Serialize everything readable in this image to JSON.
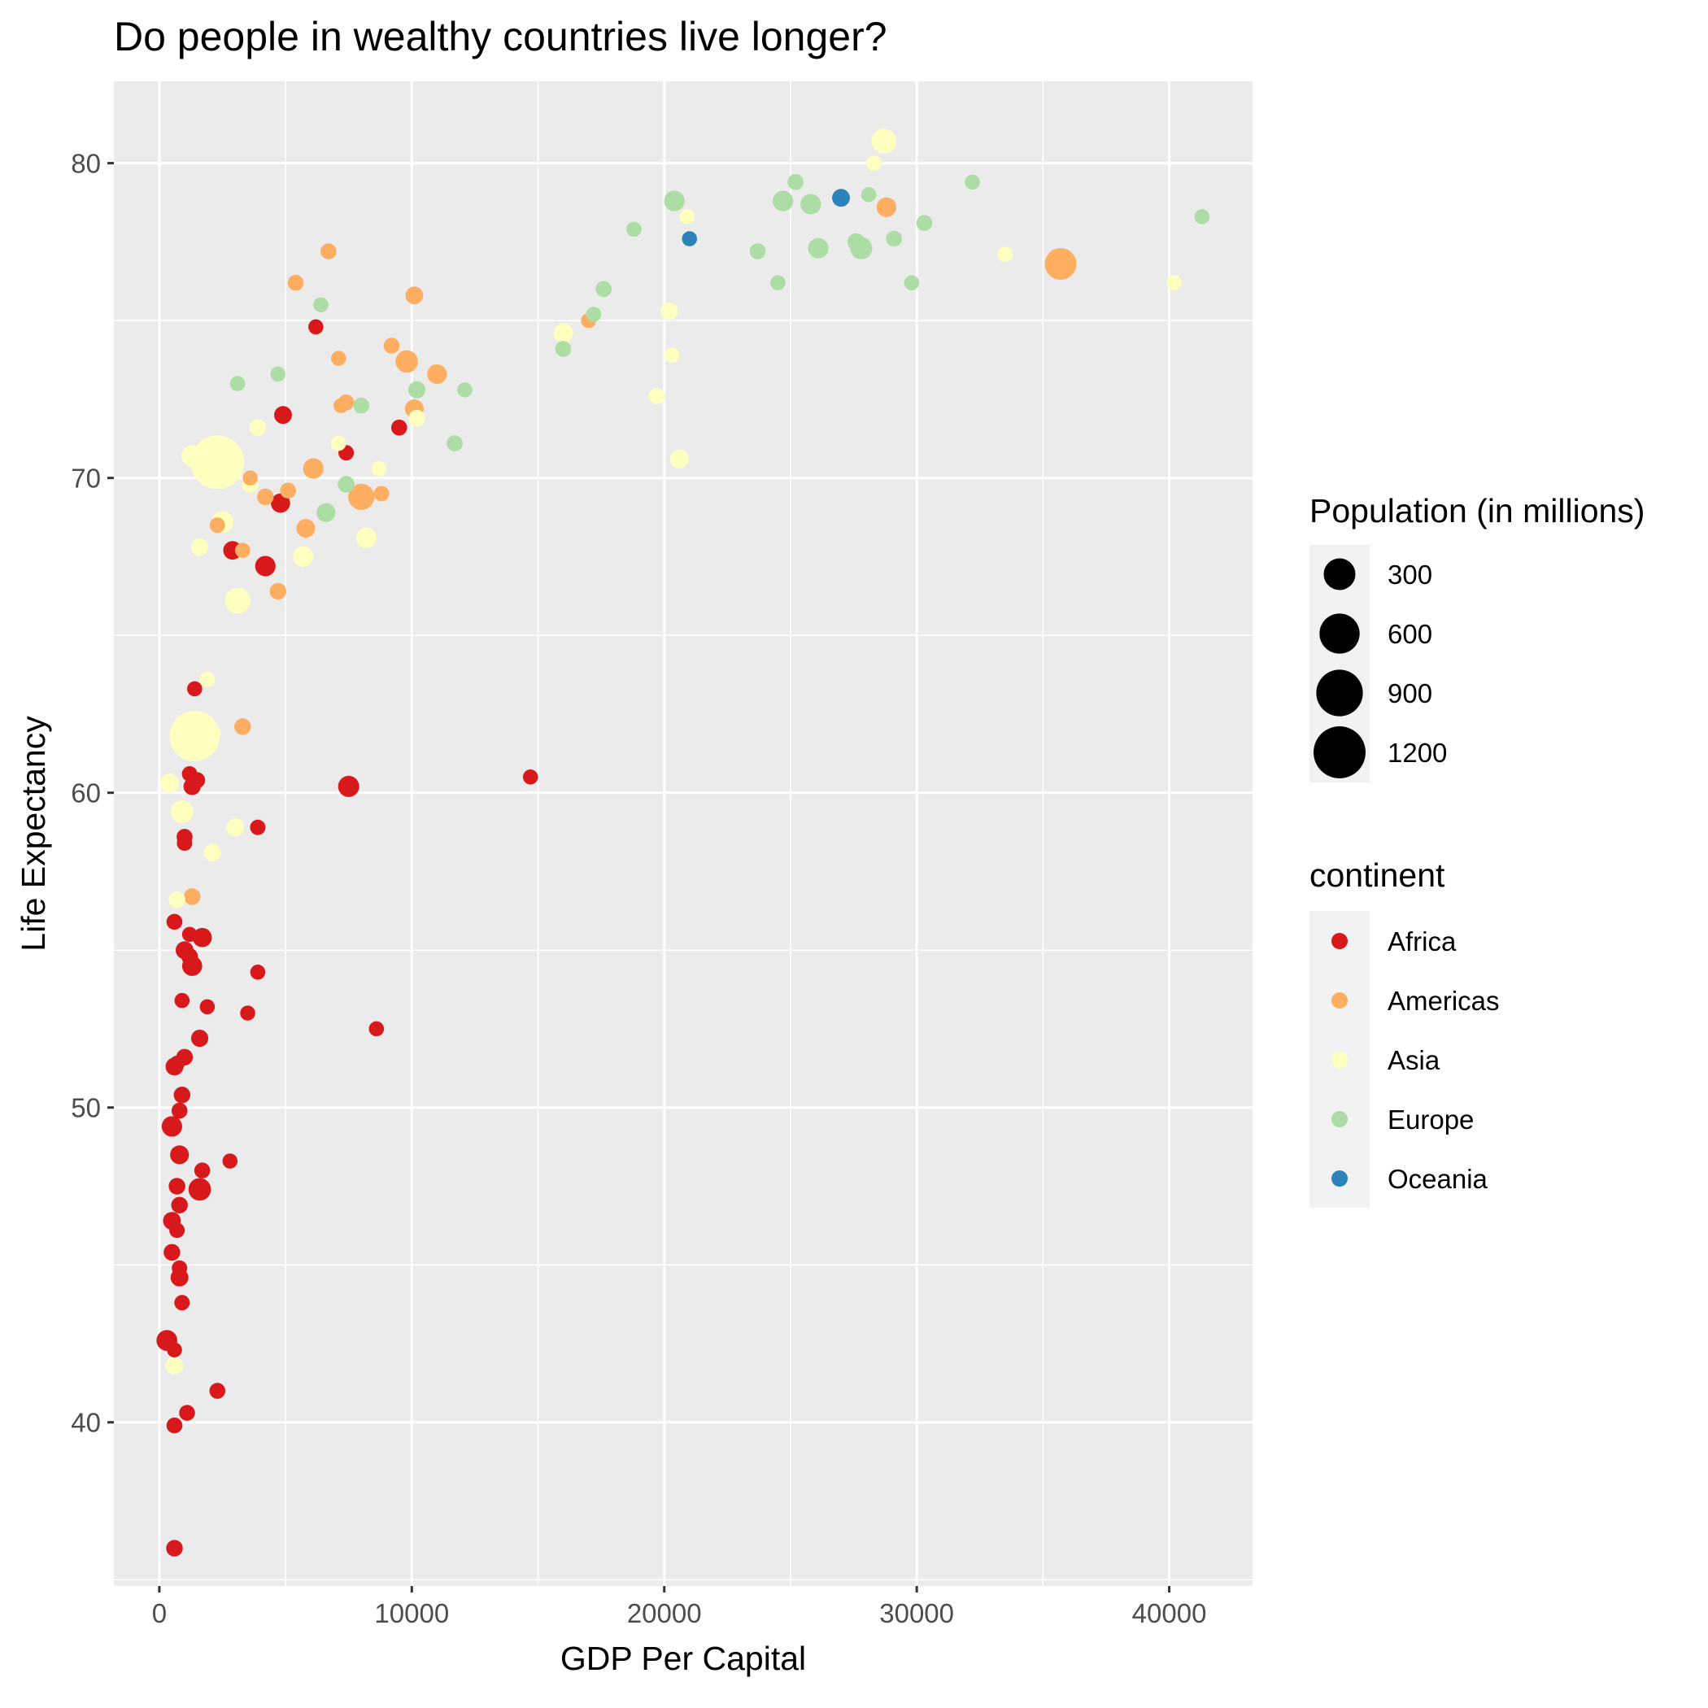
{
  "chart_data": {
    "type": "scatter",
    "title": "Do people in wealthy countries live longer?",
    "xlabel": "GDP Per Capital",
    "ylabel": "Life Expectancy",
    "xlim": [
      -1800,
      43300
    ],
    "ylim": [
      34.8,
      82.6
    ],
    "x_ticks": [
      0,
      10000,
      20000,
      30000,
      40000
    ],
    "y_ticks": [
      40,
      50,
      60,
      70,
      80
    ],
    "grid": true,
    "background": "#ebebeb",
    "size_legend": {
      "title": "Population (in millions)",
      "entries": [
        {
          "label": "300",
          "value": 300
        },
        {
          "label": "600",
          "value": 600
        },
        {
          "label": "900",
          "value": 900
        },
        {
          "label": "1200",
          "value": 1200
        }
      ]
    },
    "color_legend": {
      "title": "continent",
      "entries": [
        {
          "label": "Africa",
          "color": "#d7191c"
        },
        {
          "label": "Americas",
          "color": "#fdae61"
        },
        {
          "label": "Asia",
          "color": "#ffffbf"
        },
        {
          "label": "Europe",
          "color": "#abdda4"
        },
        {
          "label": "Oceania",
          "color": "#2b83ba"
        }
      ]
    },
    "series": [
      {
        "name": "Africa",
        "color": "#d7191c",
        "points": [
          [
            6200,
            74.8,
            10
          ],
          [
            4900,
            72.0,
            30
          ],
          [
            7400,
            70.8,
            12
          ],
          [
            9500,
            71.6,
            15
          ],
          [
            4800,
            69.2,
            45
          ],
          [
            2900,
            67.7,
            38
          ],
          [
            4200,
            67.2,
            60
          ],
          [
            1400,
            63.3,
            10
          ],
          [
            1200,
            60.6,
            12
          ],
          [
            1500,
            60.4,
            15
          ],
          [
            1300,
            60.2,
            25
          ],
          [
            7500,
            60.2,
            70
          ],
          [
            14700,
            60.5,
            10
          ],
          [
            3900,
            58.9,
            12
          ],
          [
            1000,
            58.6,
            15
          ],
          [
            1000,
            58.4,
            12
          ],
          [
            600,
            55.9,
            15
          ],
          [
            1200,
            55.5,
            10
          ],
          [
            1700,
            55.4,
            45
          ],
          [
            1000,
            55.0,
            30
          ],
          [
            1200,
            54.8,
            20
          ],
          [
            1300,
            54.5,
            55
          ],
          [
            3900,
            54.3,
            10
          ],
          [
            900,
            53.4,
            10
          ],
          [
            1900,
            53.2,
            10
          ],
          [
            3500,
            53.0,
            10
          ],
          [
            8600,
            52.5,
            10
          ],
          [
            1600,
            52.2,
            25
          ],
          [
            1000,
            51.6,
            20
          ],
          [
            700,
            51.4,
            12
          ],
          [
            600,
            51.3,
            30
          ],
          [
            900,
            50.4,
            20
          ],
          [
            800,
            49.9,
            15
          ],
          [
            500,
            49.4,
            60
          ],
          [
            800,
            48.5,
            40
          ],
          [
            2800,
            48.3,
            10
          ],
          [
            1700,
            48.0,
            15
          ],
          [
            700,
            47.5,
            20
          ],
          [
            1600,
            47.4,
            90
          ],
          [
            800,
            46.9,
            20
          ],
          [
            500,
            46.4,
            30
          ],
          [
            700,
            46.1,
            12
          ],
          [
            500,
            45.4,
            20
          ],
          [
            800,
            44.9,
            12
          ],
          [
            800,
            44.6,
            30
          ],
          [
            900,
            43.8,
            12
          ],
          [
            300,
            42.6,
            65
          ],
          [
            600,
            42.3,
            10
          ],
          [
            2300,
            41.0,
            15
          ],
          [
            1100,
            40.3,
            15
          ],
          [
            600,
            39.9,
            15
          ],
          [
            600,
            36.0,
            20
          ]
        ]
      },
      {
        "name": "Americas",
        "color": "#fdae61",
        "points": [
          [
            6700,
            77.2,
            15
          ],
          [
            5400,
            76.2,
            15
          ],
          [
            10100,
            75.8,
            30
          ],
          [
            17000,
            75.0,
            10
          ],
          [
            9200,
            74.2,
            15
          ],
          [
            7100,
            73.8,
            10
          ],
          [
            9800,
            73.7,
            90
          ],
          [
            11000,
            73.3,
            50
          ],
          [
            7400,
            72.4,
            15
          ],
          [
            7200,
            72.3,
            10
          ],
          [
            10100,
            72.2,
            40
          ],
          [
            3600,
            70.0,
            10
          ],
          [
            6100,
            70.3,
            60
          ],
          [
            5100,
            69.6,
            15
          ],
          [
            4200,
            69.4,
            20
          ],
          [
            8800,
            69.5,
            12
          ],
          [
            8000,
            69.4,
            160
          ],
          [
            2300,
            68.5,
            12
          ],
          [
            5800,
            68.4,
            40
          ],
          [
            4700,
            66.4,
            20
          ],
          [
            3300,
            67.7,
            10
          ],
          [
            3300,
            62.1,
            20
          ],
          [
            1300,
            56.7,
            20
          ],
          [
            28800,
            78.6,
            50
          ],
          [
            35700,
            76.8,
            300
          ]
        ]
      },
      {
        "name": "Asia",
        "color": "#ffffbf",
        "points": [
          [
            28700,
            80.7,
            130
          ],
          [
            28300,
            80.0,
            10
          ],
          [
            20900,
            78.3,
            10
          ],
          [
            33500,
            77.1,
            10
          ],
          [
            40200,
            76.2,
            10
          ],
          [
            16000,
            74.6,
            50
          ],
          [
            20200,
            75.3,
            25
          ],
          [
            20300,
            73.9,
            10
          ],
          [
            19700,
            72.6,
            15
          ],
          [
            10200,
            71.9,
            20
          ],
          [
            7100,
            71.1,
            10
          ],
          [
            8700,
            70.3,
            10
          ],
          [
            3900,
            71.6,
            20
          ],
          [
            1300,
            70.7,
            70
          ],
          [
            2300,
            70.5,
            1300
          ],
          [
            3600,
            69.8,
            20
          ],
          [
            2500,
            68.6,
            80
          ],
          [
            1600,
            67.8,
            25
          ],
          [
            5700,
            67.5,
            60
          ],
          [
            8200,
            68.1,
            60
          ],
          [
            3100,
            66.1,
            150
          ],
          [
            1900,
            63.6,
            12
          ],
          [
            1400,
            61.8,
            1100
          ],
          [
            2100,
            61.9,
            25
          ],
          [
            400,
            60.3,
            45
          ],
          [
            900,
            59.4,
            90
          ],
          [
            3000,
            58.9,
            30
          ],
          [
            2100,
            58.1,
            25
          ],
          [
            700,
            56.6,
            20
          ],
          [
            20600,
            70.6,
            40
          ],
          [
            600,
            41.8,
            30
          ]
        ]
      },
      {
        "name": "Europe",
        "color": "#abdda4",
        "points": [
          [
            25200,
            79.4,
            15
          ],
          [
            32200,
            79.4,
            10
          ],
          [
            20400,
            78.8,
            60
          ],
          [
            24700,
            78.8,
            60
          ],
          [
            25800,
            78.7,
            60
          ],
          [
            28100,
            79.0,
            10
          ],
          [
            18800,
            77.9,
            10
          ],
          [
            30300,
            78.1,
            15
          ],
          [
            41300,
            78.3,
            10
          ],
          [
            23700,
            77.2,
            15
          ],
          [
            26100,
            77.3,
            60
          ],
          [
            27600,
            77.5,
            25
          ],
          [
            27800,
            77.3,
            85
          ],
          [
            29100,
            77.6,
            15
          ],
          [
            17600,
            76.0,
            15
          ],
          [
            24500,
            76.2,
            10
          ],
          [
            29800,
            76.2,
            10
          ],
          [
            17200,
            75.2,
            10
          ],
          [
            6400,
            75.5,
            10
          ],
          [
            16000,
            74.1,
            15
          ],
          [
            3100,
            73.0,
            10
          ],
          [
            4700,
            73.3,
            10
          ],
          [
            10200,
            72.8,
            25
          ],
          [
            12100,
            72.8,
            10
          ],
          [
            8000,
            72.3,
            15
          ],
          [
            11700,
            71.1,
            15
          ],
          [
            7400,
            69.8,
            20
          ],
          [
            6600,
            68.9,
            40
          ]
        ]
      },
      {
        "name": "Oceania",
        "color": "#2b83ba",
        "points": [
          [
            27000,
            78.9,
            30
          ],
          [
            21000,
            77.6,
            10
          ]
        ]
      }
    ]
  }
}
